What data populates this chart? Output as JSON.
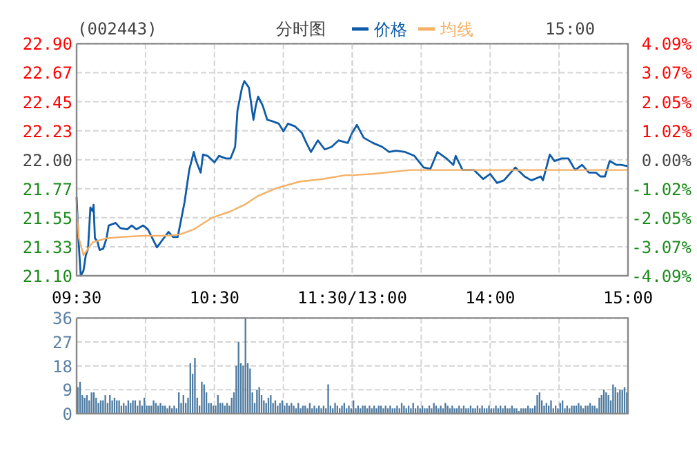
{
  "chart_data": [
    {
      "type": "line",
      "title": "(002443)",
      "subtitle": "分时图",
      "annotations": [
        "15:00"
      ],
      "legend": "top",
      "grid": true,
      "xlim": [
        9.5,
        11.5
      ],
      "xticks": [
        {
          "value": 9.5,
          "label": "09:30"
        },
        {
          "value": 10,
          "label": null
        },
        {
          "value": 10.5,
          "label": "10:30"
        },
        {
          "value": 11,
          "label": null
        },
        {
          "value": 11.5,
          "label": "11:30/13:00"
        }
      ],
      "ylim": [
        21.1,
        22.9
      ],
      "yticks": [
        {
          "value": 21.1,
          "label": "21.10"
        },
        {
          "value": 21.325,
          "label": "21.33"
        },
        {
          "value": 21.55,
          "label": "21.55"
        },
        {
          "value": 21.775,
          "label": "21.77"
        },
        {
          "value": 22.0,
          "label": "22.00"
        },
        {
          "value": 22.225,
          "label": "22.23"
        },
        {
          "value": 22.45,
          "label": "22.45"
        },
        {
          "value": 22.675,
          "label": "22.67"
        },
        {
          "value": 22.9,
          "label": "22.90"
        }
      ],
      "series": [
        {
          "name": "价格",
          "color": "#0f5ba8",
          "x": [
            9.5,
            9.513,
            9.53,
            9.55,
            9.567,
            9.583,
            9.6,
            9.617,
            9.623,
            9.633,
            9.65,
            9.667,
            9.693,
            9.717,
            9.733,
            9.783,
            9.817,
            9.867,
            9.9,
            9.933,
            9.983,
            10.017,
            10.083,
            10.117,
            10.167,
            10.2,
            10.233,
            10.25,
            10.283,
            10.317,
            10.35,
            10.367,
            10.4,
            10.417,
            10.45,
            10.5,
            10.533,
            10.583,
            10.617,
            10.65,
            10.667,
            10.7,
            10.717,
            10.75,
            10.783,
            10.8,
            10.817,
            10.85,
            10.883,
            10.917,
            10.967,
            11,
            11.033,
            11.083,
            11.133,
            11.167,
            11.2,
            11.25,
            11.3,
            11.35,
            11.4,
            11.467,
            11.5
          ],
          "values": [
            21.71,
            21.39,
            21.1,
            21.14,
            21.26,
            21.31,
            21.63,
            21.6,
            21.65,
            21.39,
            21.37,
            21.3,
            21.31,
            21.39,
            21.49,
            21.51,
            21.47,
            21.46,
            21.49,
            21.46,
            21.49,
            21.46,
            21.32,
            21.37,
            21.44,
            21.4,
            21.4,
            21.49,
            21.67,
            21.92,
            22.06,
            21.99,
            21.9,
            22.04,
            22.03,
            21.98,
            22.03,
            22.01,
            22.01,
            22.1,
            22.38,
            22.56,
            22.61,
            22.56,
            22.31,
            22.42,
            22.49,
            22.42,
            22.31,
            22.3,
            22.28,
            22.22,
            22.28,
            22.26,
            22.21,
            22.13,
            22.06,
            22.15,
            22.08,
            22.1,
            22.15,
            22.13,
            22.21
          ]
        },
        {
          "name": "均线",
          "color": "#f5b066",
          "x": [
            9.5,
            9.517,
            9.55,
            9.583,
            9.617,
            9.717,
            9.817,
            9.983,
            10.15,
            10.25,
            10.35,
            10.483,
            10.617,
            10.717,
            10.817,
            10.95,
            11.117,
            11.283,
            11.45,
            11.5
          ],
          "values": [
            21.62,
            21.39,
            21.26,
            21.31,
            21.36,
            21.39,
            21.4,
            21.41,
            21.41,
            21.42,
            21.46,
            21.55,
            21.6,
            21.65,
            21.72,
            21.78,
            21.83,
            21.85,
            21.88,
            21.88
          ]
        }
      ]
    },
    {
      "type": "line",
      "grid": true,
      "tick_labels": "x",
      "xlim": [
        13,
        15
      ],
      "xticks": [
        {
          "value": 13,
          "label": null
        },
        {
          "value": 13.5,
          "label": null
        },
        {
          "value": 14,
          "label": "14:00"
        },
        {
          "value": 14.5,
          "label": null
        },
        {
          "value": 15,
          "label": "15:00"
        }
      ],
      "ylim": [
        21.1,
        22.9
      ],
      "y2lim": [
        -4.09,
        4.09
      ],
      "y2ticks": [
        {
          "value": -4.09,
          "label": "-4.09%"
        },
        {
          "value": -3.0675,
          "label": "-3.07%"
        },
        {
          "value": -2.045,
          "label": "-2.05%"
        },
        {
          "value": -1.0225,
          "label": "-1.02%"
        },
        {
          "value": 0,
          "label": "0.00%"
        },
        {
          "value": 1.0225,
          "label": "1.02%"
        },
        {
          "value": 2.045,
          "label": "2.05%"
        },
        {
          "value": 3.0675,
          "label": "3.07%"
        },
        {
          "value": 4.09,
          "label": "4.09%"
        }
      ],
      "series": [
        {
          "color": "#0f5ba8",
          "x": [
            13,
            13.033,
            13.083,
            13.15,
            13.217,
            13.267,
            13.317,
            13.383,
            13.45,
            13.517,
            13.567,
            13.617,
            13.683,
            13.733,
            13.75,
            13.8,
            13.883,
            13.95,
            14,
            14.05,
            14.1,
            14.183,
            14.25,
            14.3,
            14.367,
            14.383,
            14.433,
            14.467,
            14.517,
            14.567,
            14.617,
            14.667,
            14.717,
            14.767,
            14.8,
            14.833,
            14.867,
            14.917,
            14.95,
            15
          ],
          "values": [
            22.21,
            22.27,
            22.17,
            22.13,
            22.1,
            22.06,
            22.07,
            22.06,
            22.03,
            21.94,
            21.93,
            22.06,
            22.01,
            21.96,
            22.03,
            21.92,
            21.92,
            21.85,
            21.89,
            21.82,
            21.84,
            21.94,
            21.87,
            21.84,
            21.87,
            21.84,
            22.04,
            21.99,
            22.01,
            22.01,
            21.92,
            21.96,
            21.9,
            21.9,
            21.87,
            21.87,
            21.99,
            21.96,
            21.96,
            21.95
          ]
        },
        {
          "color": "#f5b066",
          "x": [
            13,
            13.15,
            13.417,
            13.667,
            15
          ],
          "values": [
            21.88,
            21.89,
            21.92,
            21.92,
            21.92
          ]
        }
      ]
    },
    {
      "type": "bar",
      "color": "#4f7ba0",
      "grid": true,
      "tick_labels": "y",
      "ylim": [
        0,
        36
      ],
      "yticks": [
        0,
        9,
        18,
        27,
        36
      ],
      "categories": [
        null,
        null,
        null,
        null,
        null,
        null,
        null,
        null,
        null,
        null,
        null,
        null,
        null,
        null,
        null,
        null,
        null,
        null,
        null,
        null,
        null,
        null,
        null,
        null,
        null,
        null,
        null,
        null,
        null,
        null,
        null,
        null,
        null,
        null,
        null,
        null,
        null,
        null,
        null,
        null,
        null,
        null,
        null,
        null,
        null,
        null,
        null,
        null,
        null,
        null,
        null,
        null,
        null,
        null,
        null,
        null,
        null,
        null,
        null,
        null,
        null,
        null,
        null,
        null,
        null,
        null,
        null,
        null,
        null,
        null,
        null,
        null,
        null,
        null,
        null,
        null,
        null,
        null,
        null,
        null,
        null,
        null,
        null,
        null,
        null,
        null,
        null,
        null,
        null,
        null,
        null,
        null,
        null,
        null,
        null,
        null,
        null,
        null,
        null,
        null,
        null,
        null,
        null,
        null,
        null,
        null,
        null,
        null,
        null,
        null,
        null,
        null,
        null,
        null,
        null,
        null,
        null,
        null,
        null,
        null,
        null,
        null,
        null,
        null,
        null,
        null,
        null,
        null,
        null,
        null,
        null,
        null,
        null,
        null,
        null,
        null,
        null,
        null,
        null,
        null,
        null,
        null,
        null,
        null,
        null,
        null,
        null,
        null,
        null,
        null,
        null,
        null,
        null,
        null,
        null,
        null,
        null,
        null,
        null,
        null,
        null,
        null,
        null,
        null,
        null,
        null,
        null,
        null,
        null,
        null,
        null,
        null,
        null,
        null,
        null,
        null,
        null,
        null,
        null,
        null,
        null,
        null,
        null,
        null,
        null,
        null,
        null,
        null,
        null,
        null,
        null,
        null,
        null,
        null,
        null,
        null,
        null,
        null,
        null,
        null,
        null,
        null,
        null,
        null,
        null,
        null,
        null,
        null,
        null,
        null,
        null,
        null,
        null,
        null,
        null,
        null,
        null,
        null,
        null,
        null,
        null,
        null,
        null,
        null,
        null,
        null,
        null,
        null,
        null,
        null,
        null,
        null,
        null,
        null,
        null,
        null,
        null,
        null,
        null,
        null
      ],
      "values": [
        10,
        12,
        7,
        6,
        7,
        5,
        8,
        8,
        6,
        4,
        5,
        5,
        7,
        4,
        7,
        5,
        6,
        5,
        5,
        3,
        4,
        3,
        5,
        4,
        5,
        5,
        3,
        5,
        3,
        6,
        3,
        3,
        3,
        5,
        4,
        3,
        4,
        3,
        3,
        2,
        3,
        2,
        3,
        2,
        8,
        4,
        7,
        4,
        6,
        19,
        15,
        21,
        6,
        3,
        12,
        11,
        8,
        4,
        4,
        3,
        3,
        7,
        4,
        4,
        3,
        4,
        3,
        6,
        8,
        18,
        27,
        19,
        18,
        36,
        19,
        17,
        8,
        4,
        9,
        10,
        7,
        5,
        4,
        6,
        7,
        4,
        5,
        3,
        4,
        5,
        3,
        4,
        3,
        4,
        3,
        2,
        4,
        2,
        3,
        3,
        2,
        4,
        2,
        3,
        2,
        3,
        2,
        3,
        2,
        11,
        3,
        2,
        4,
        3,
        2,
        3,
        4,
        2,
        3,
        2,
        5,
        2,
        3,
        2,
        3,
        3,
        2,
        3,
        2,
        3,
        2,
        3,
        3,
        2,
        3,
        2,
        3,
        2,
        2,
        3,
        2,
        4,
        3,
        2,
        3,
        2,
        4,
        2,
        3,
        2,
        3,
        2,
        2,
        3,
        2,
        4,
        3,
        2,
        3,
        2,
        4,
        3,
        2,
        3,
        2,
        2,
        3,
        2,
        3,
        2,
        2,
        3,
        2,
        2,
        3,
        2,
        3,
        2,
        2,
        3,
        2,
        2,
        3,
        2,
        3,
        2,
        3,
        2,
        2,
        3,
        2,
        2,
        1,
        2,
        2,
        2,
        3,
        2,
        2,
        3,
        7,
        8,
        5,
        3,
        4,
        3,
        5,
        2,
        3,
        2,
        4,
        5,
        2,
        3,
        2,
        3,
        3,
        3,
        4,
        3,
        2,
        3,
        3,
        4,
        3,
        3,
        2,
        6,
        7,
        9,
        8,
        7,
        5,
        11,
        10,
        8,
        9,
        9,
        10,
        8
      ]
    }
  ]
}
